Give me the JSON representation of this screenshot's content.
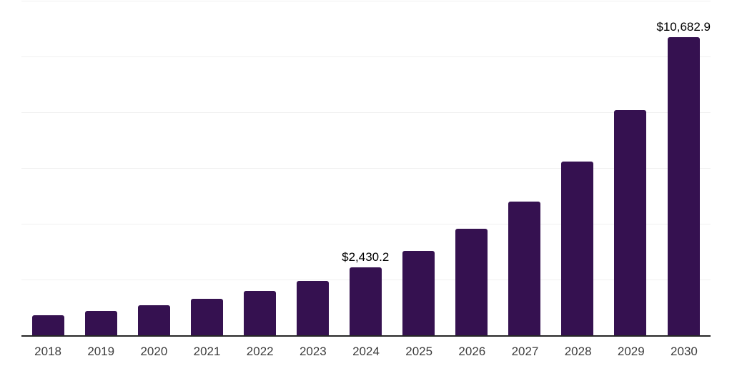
{
  "chart_data": {
    "type": "bar",
    "title": "",
    "xlabel": "",
    "ylabel": "",
    "legend": "none",
    "grid": "horizontal-light",
    "categories": [
      "2018",
      "2019",
      "2020",
      "2021",
      "2022",
      "2023",
      "2024",
      "2025",
      "2026",
      "2027",
      "2028",
      "2029",
      "2030"
    ],
    "values": [
      710,
      870,
      1090,
      1310,
      1590,
      1960,
      2430.2,
      3030,
      3810,
      4790,
      6230,
      8080,
      10682.9
    ],
    "value_labels": {
      "6": "$2,430.2",
      "12": "$10,682.9"
    },
    "ylim": [
      0,
      12000
    ],
    "gridline_values": [
      2000,
      4000,
      6000,
      8000,
      10000,
      12000
    ],
    "colors": {
      "bar": "#351150",
      "gridline": "#f0f0f0",
      "axis_line": "#262626",
      "value_label": "#000000",
      "tick_label": "#3d3d3d",
      "background": "#ffffff"
    }
  }
}
